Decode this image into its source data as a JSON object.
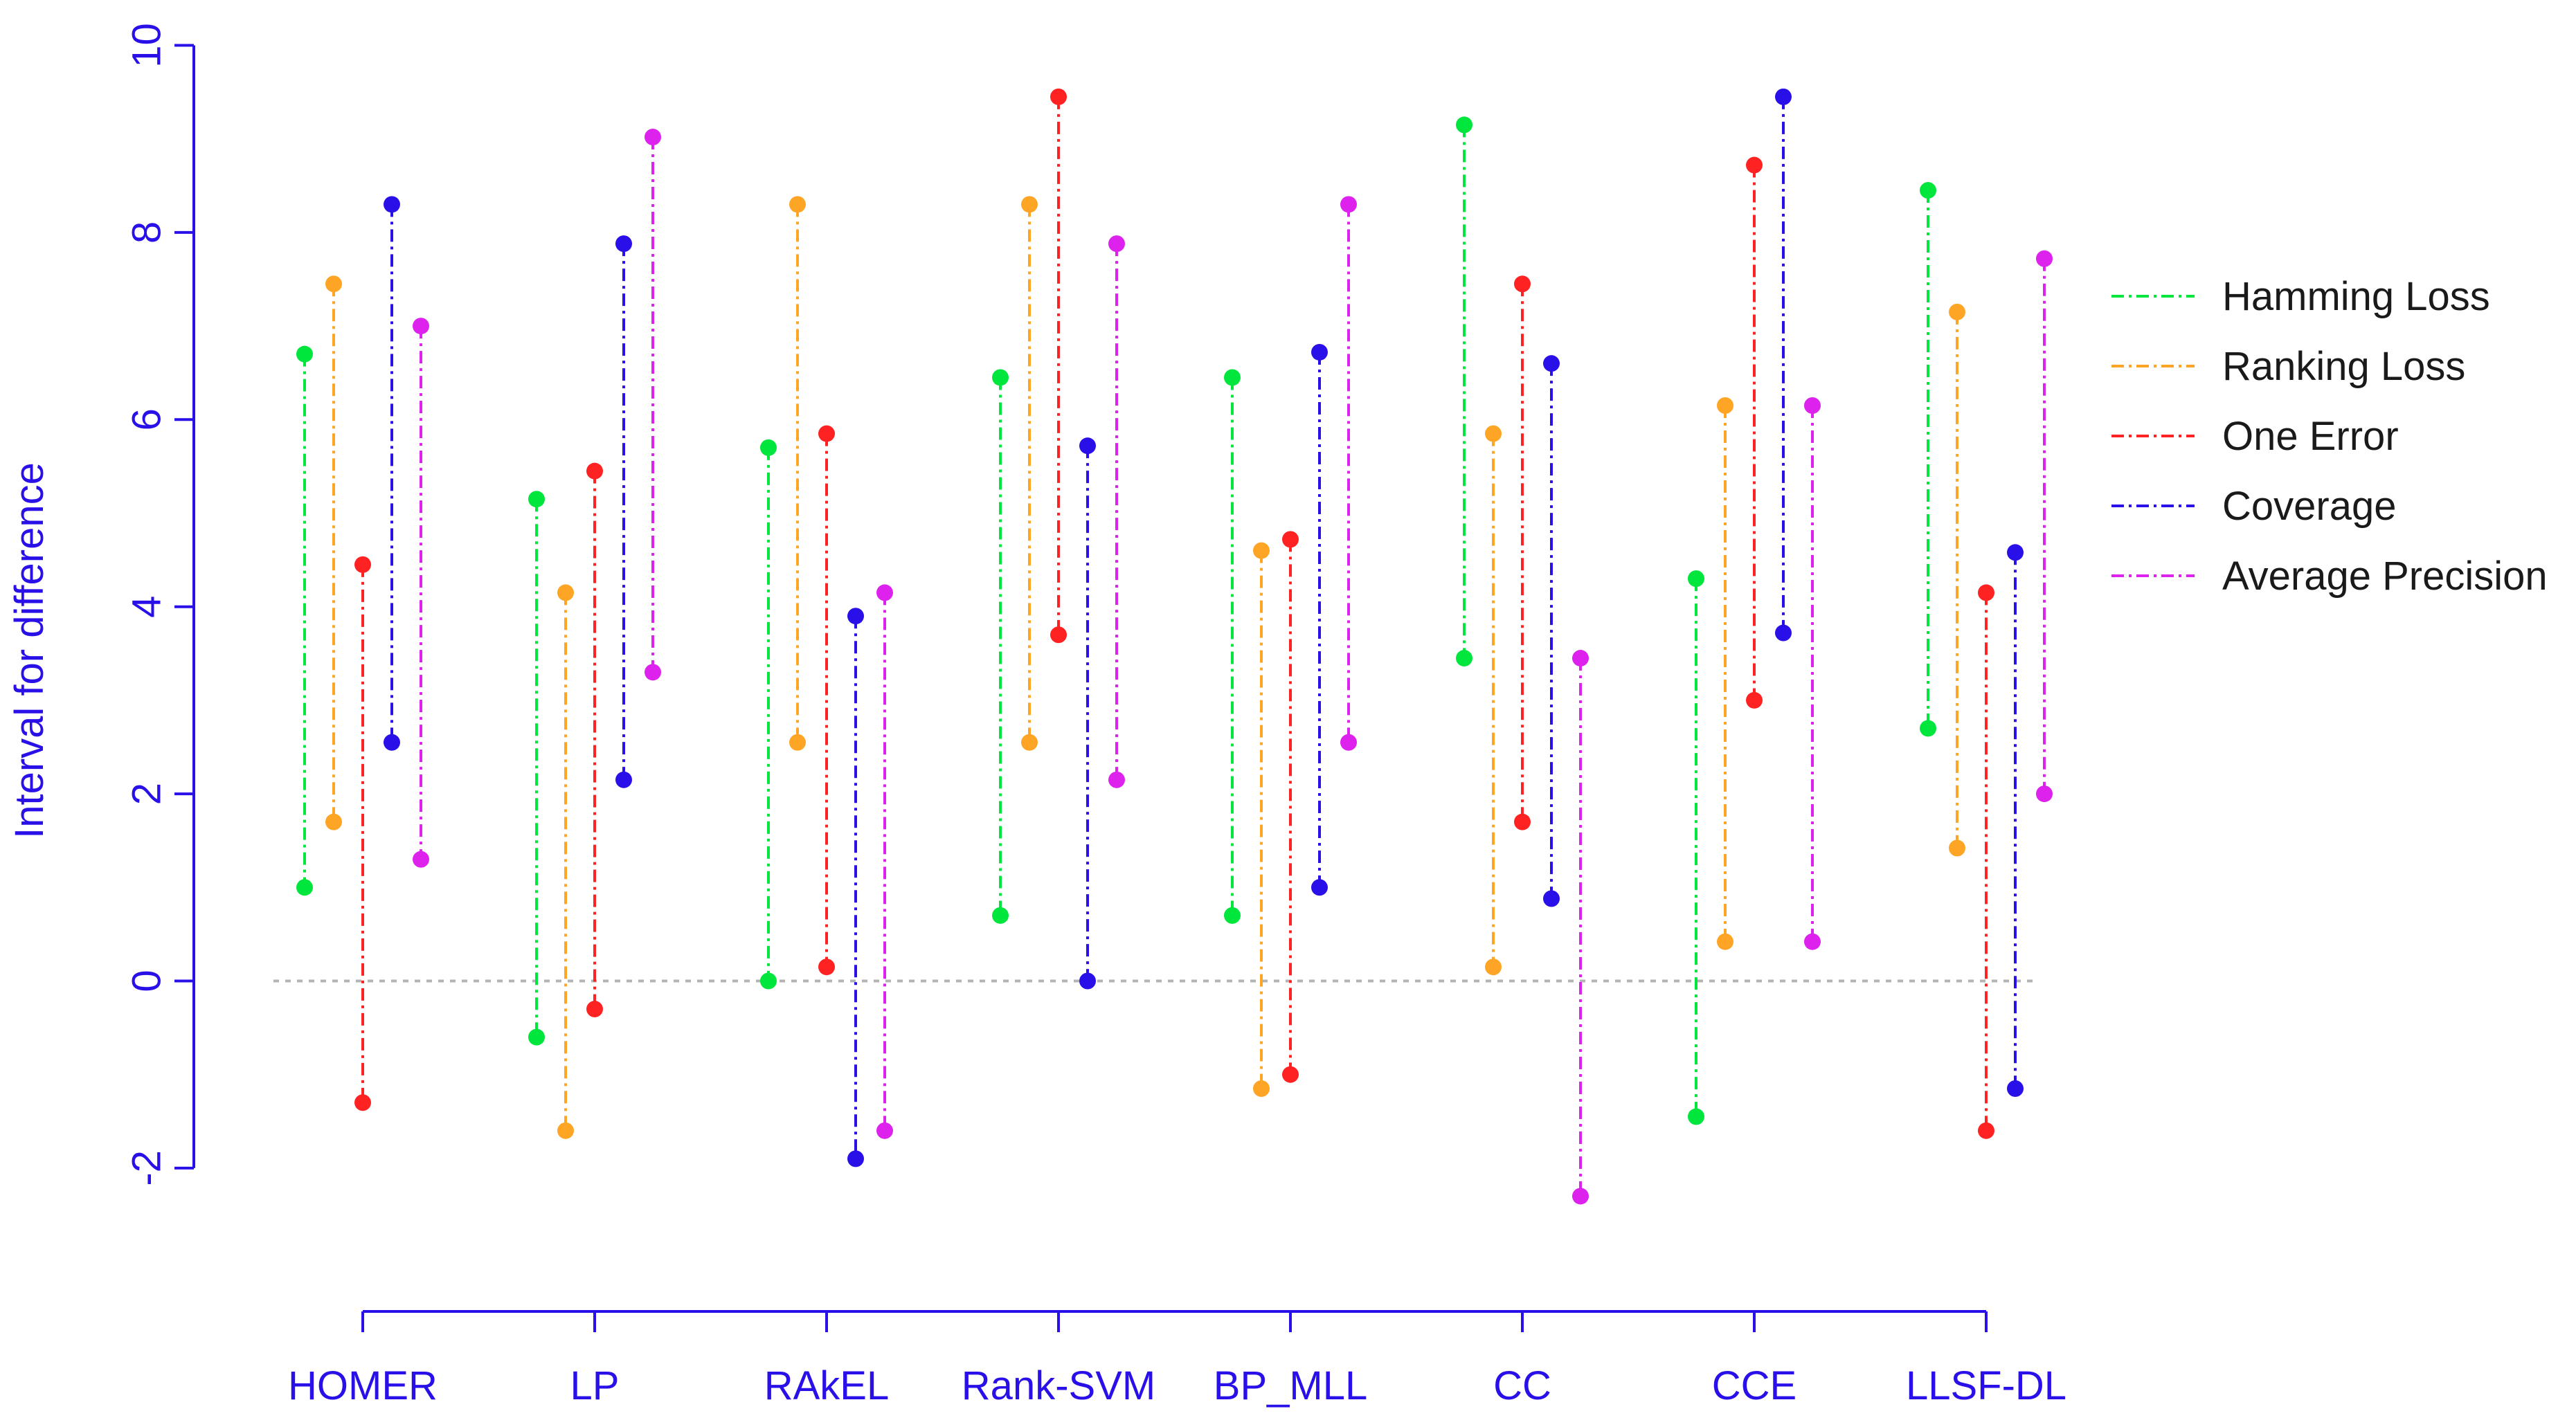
{
  "chart_data": {
    "type": "interval",
    "title": "",
    "xlabel": "",
    "ylabel": "Interval for difference",
    "ylim": [
      -3.5,
      10
    ],
    "yticks": [
      -2,
      0,
      2,
      4,
      6,
      8,
      10
    ],
    "ytick_labels": [
      "-2",
      "0",
      "2",
      "4",
      "6",
      "8",
      "10"
    ],
    "reference_line": 0,
    "legend_position": "top-right",
    "categories": [
      "HOMER",
      "LP",
      "RAkEL",
      "Rank-SVM",
      "BP_MLL",
      "CC",
      "CCE",
      "LLSF-DL"
    ],
    "series": [
      {
        "name": "Hamming Loss",
        "color": "#00e63c",
        "intervals": [
          [
            1.0,
            6.7
          ],
          [
            -0.6,
            5.15
          ],
          [
            0.0,
            5.7
          ],
          [
            0.7,
            6.45
          ],
          [
            0.7,
            6.45
          ],
          [
            3.45,
            9.15
          ],
          [
            -1.45,
            4.3
          ],
          [
            2.7,
            8.45
          ]
        ]
      },
      {
        "name": "Ranking Loss",
        "color": "#ffa526",
        "intervals": [
          [
            1.7,
            7.45
          ],
          [
            -1.6,
            4.15
          ],
          [
            2.55,
            8.3
          ],
          [
            2.55,
            8.3
          ],
          [
            -1.15,
            4.6
          ],
          [
            0.15,
            5.85
          ],
          [
            0.42,
            6.15
          ],
          [
            1.42,
            7.15
          ]
        ]
      },
      {
        "name": "One Error",
        "color": "#ff2222",
        "intervals": [
          [
            -1.3,
            4.45
          ],
          [
            -0.3,
            5.45
          ],
          [
            0.15,
            5.85
          ],
          [
            3.7,
            9.45
          ],
          [
            -1.0,
            4.72
          ],
          [
            1.7,
            7.45
          ],
          [
            3.0,
            8.72
          ],
          [
            -1.6,
            4.15
          ]
        ]
      },
      {
        "name": "Coverage",
        "color": "#2a10e8",
        "intervals": [
          [
            2.55,
            8.3
          ],
          [
            2.15,
            7.88
          ],
          [
            -1.9,
            3.9
          ],
          [
            0.0,
            5.72
          ],
          [
            1.0,
            6.72
          ],
          [
            0.88,
            6.6
          ],
          [
            3.72,
            9.45
          ],
          [
            -1.15,
            4.58
          ]
        ]
      },
      {
        "name": "Average Precision",
        "color": "#dd22ee",
        "intervals": [
          [
            1.3,
            7.0
          ],
          [
            3.3,
            9.02
          ],
          [
            -1.6,
            4.15
          ],
          [
            2.15,
            7.88
          ],
          [
            2.55,
            8.3
          ],
          [
            -2.3,
            3.45
          ],
          [
            0.42,
            6.15
          ],
          [
            2.0,
            7.72
          ]
        ]
      }
    ]
  },
  "colors": {
    "axis": "#2a10e8",
    "reference": "#b4b4b4"
  }
}
